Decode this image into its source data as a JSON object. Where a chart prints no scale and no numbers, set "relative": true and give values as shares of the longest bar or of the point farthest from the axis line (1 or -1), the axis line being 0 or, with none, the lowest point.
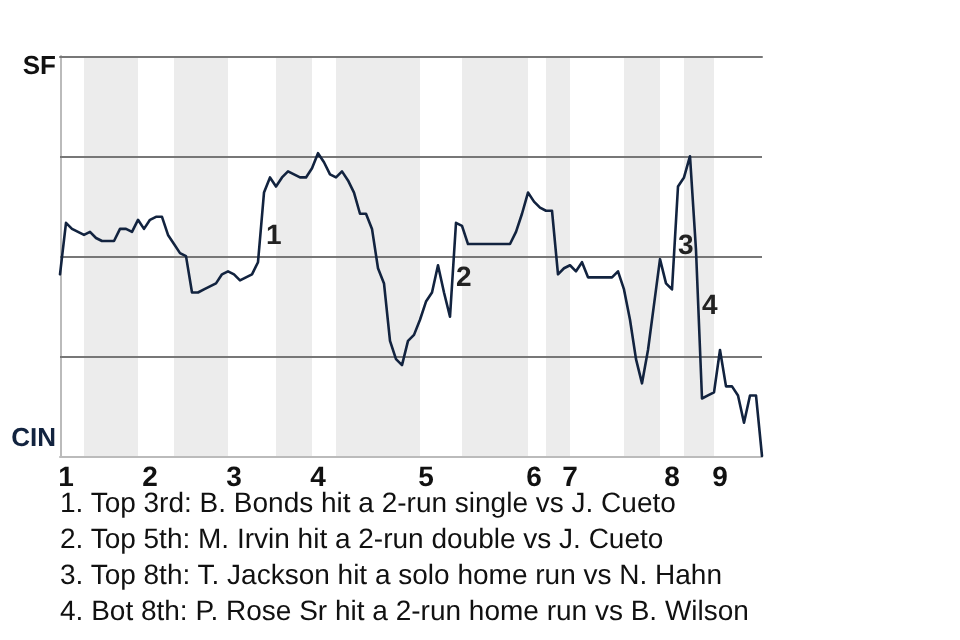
{
  "chart_data": {
    "type": "line",
    "relative": true,
    "categories": [
      null,
      "1",
      null,
      null,
      null,
      null,
      null,
      null,
      null,
      null,
      null,
      null,
      null,
      null,
      null,
      "2",
      null,
      null,
      null,
      null,
      null,
      null,
      null,
      null,
      null,
      null,
      null,
      null,
      null,
      "3",
      null,
      null,
      null,
      null,
      null,
      null,
      null,
      null,
      null,
      null,
      null,
      null,
      null,
      "4",
      null,
      null,
      null,
      null,
      null,
      null,
      null,
      null,
      null,
      null,
      null,
      null,
      null,
      null,
      null,
      null,
      null,
      "5",
      null,
      null,
      null,
      null,
      null,
      null,
      null,
      null,
      null,
      null,
      null,
      null,
      null,
      null,
      null,
      null,
      null,
      "6",
      null,
      null,
      null,
      null,
      null,
      "7",
      null,
      null,
      null,
      null,
      null,
      null,
      null,
      null,
      null,
      null,
      null,
      null,
      null,
      null,
      null,
      null,
      "8",
      null,
      null,
      null,
      null,
      null,
      null,
      null,
      "9",
      null,
      null,
      null,
      null,
      null,
      null,
      null
    ],
    "series": [
      {
        "color": "#12233f",
        "values": [
          0.6,
          0.77,
          0.75,
          0.74,
          0.73,
          0.74,
          0.72,
          0.71,
          0.71,
          0.71,
          0.75,
          0.75,
          0.74,
          0.78,
          0.75,
          0.78,
          0.79,
          0.79,
          0.73,
          0.7,
          0.67,
          0.66,
          0.54,
          0.54,
          0.55,
          0.56,
          0.57,
          0.6,
          0.61,
          0.6,
          0.58,
          0.59,
          0.6,
          0.64,
          0.87,
          0.92,
          0.89,
          0.92,
          0.94,
          0.93,
          0.92,
          0.92,
          0.95,
          1,
          0.97,
          0.93,
          0.92,
          0.94,
          0.91,
          0.87,
          0.8,
          0.8,
          0.75,
          0.62,
          0.57,
          0.38,
          0.32,
          0.3,
          0.38,
          0.4,
          0.45,
          0.51,
          0.54,
          0.63,
          0.54,
          0.46,
          0.77,
          0.76,
          0.7,
          0.7,
          0.7,
          0.7,
          0.7,
          0.7,
          0.7,
          0.7,
          0.74,
          0.8,
          0.87,
          0.84,
          0.82,
          0.81,
          0.81,
          0.6,
          0.62,
          0.63,
          0.61,
          0.64,
          0.59,
          0.59,
          0.59,
          0.59,
          0.59,
          0.61,
          0.55,
          0.45,
          0.32,
          0.24,
          0.35,
          0.5,
          0.65,
          0.57,
          0.55,
          0.89,
          0.92,
          0.99,
          0.68,
          0.19,
          0.2,
          0.21,
          0.35,
          0.23,
          0.23,
          0.2,
          0.11,
          0.2,
          0.2,
          0
        ]
      }
    ],
    "marker": "none",
    "ref_lines": [
      {
        "axis": "y",
        "value": 0.33,
        "color": "#777777"
      },
      {
        "axis": "y",
        "value": 0.66,
        "color": "#777777"
      },
      {
        "axis": "y",
        "value": 0.99,
        "color": "#777777"
      }
    ],
    "annotations": [
      "SF",
      "CIN",
      "1",
      "2",
      "3",
      "4",
      "1. Top 3rd: B. Bonds hit a 2-run single vs J. Cueto",
      "2. Top 5th: M. Irvin hit a 2-run double vs J. Cueto",
      "3. Top 8th: T. Jackson hit a solo home run vs N. Hahn",
      "4. Bot 8th: P. Rose Sr hit a 2-run home run vs B. Wilson"
    ]
  }
}
